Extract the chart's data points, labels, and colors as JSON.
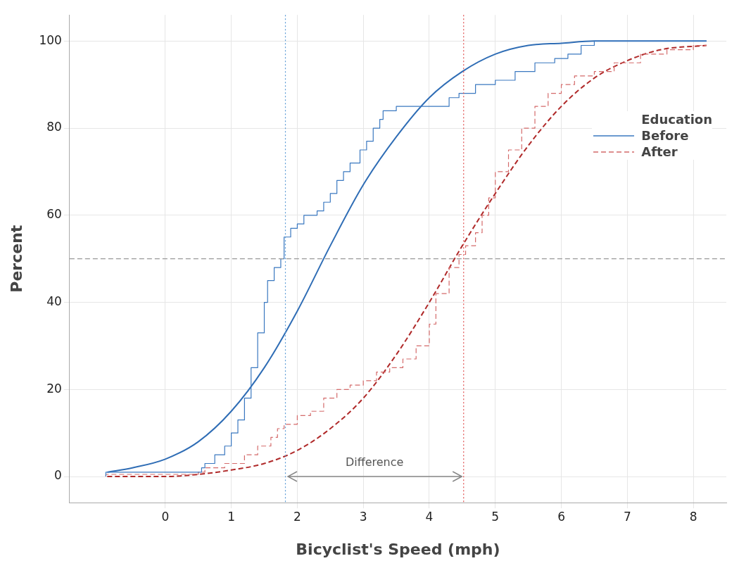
{
  "chart_data": {
    "type": "line",
    "xlabel": "Bicyclist's Speed (mph)",
    "ylabel": "Percent",
    "legend_title": "Education",
    "legend": "top right",
    "grid": true,
    "xlim": [
      -1.45,
      8.5
    ],
    "xticks": [
      0,
      1,
      2,
      3,
      4,
      5,
      6,
      7,
      8
    ],
    "ylim": [
      -6,
      106
    ],
    "yticks": [
      0,
      20,
      40,
      60,
      80,
      100
    ],
    "series": [
      {
        "name": "Before",
        "type": "step",
        "color": "#3a78c0",
        "line_style": "solid",
        "x": [
          -0.9,
          0.55,
          0.6,
          0.75,
          0.9,
          1.0,
          1.1,
          1.2,
          1.3,
          1.4,
          1.5,
          1.55,
          1.65,
          1.75,
          1.8,
          1.9,
          2.0,
          2.1,
          2.3,
          2.4,
          2.5,
          2.6,
          2.7,
          2.8,
          2.95,
          3.05,
          3.15,
          3.25,
          3.3,
          3.5,
          3.8,
          4.3,
          4.45,
          4.7,
          5.0,
          5.3,
          5.6,
          5.9,
          6.1,
          6.3,
          6.5,
          6.6,
          8.2
        ],
        "values": [
          0,
          1,
          2,
          3,
          5,
          7,
          10,
          13,
          18,
          25,
          33,
          40,
          45,
          48,
          50,
          55,
          57,
          58,
          60,
          61,
          63,
          65,
          68,
          70,
          72,
          75,
          77,
          80,
          82,
          84,
          85,
          85,
          87,
          88,
          90,
          91,
          93,
          95,
          96,
          97,
          99,
          100,
          100
        ]
      },
      {
        "color": "#2f6db5",
        "line_style": "solid",
        "x": [
          -0.88,
          -0.5,
          0,
          0.5,
          1,
          1.5,
          2,
          2.5,
          3,
          3.5,
          4,
          4.5,
          5,
          5.5,
          6,
          6.5,
          7,
          7.5,
          8.2
        ],
        "values": [
          1,
          2,
          4,
          8,
          15,
          25,
          38,
          53,
          67,
          78,
          87,
          93,
          97,
          99,
          99.5,
          100,
          100,
          100,
          100
        ]
      },
      {
        "name": "After",
        "type": "step",
        "color": "#d46a6a",
        "line_style": "dashed",
        "x": [
          -0.9,
          0.5,
          0.6,
          0.9,
          1.2,
          1.4,
          1.6,
          1.7,
          1.8,
          2.0,
          2.2,
          2.4,
          2.6,
          2.8,
          3.0,
          3.2,
          3.4,
          3.6,
          3.8,
          4.0,
          4.1,
          4.3,
          4.45,
          4.55,
          4.7,
          4.8,
          4.9,
          5.0,
          5.2,
          5.4,
          5.6,
          5.8,
          6.0,
          6.2,
          6.5,
          6.8,
          7.2,
          7.6,
          8.0,
          8.2
        ],
        "values": [
          0,
          0.5,
          1,
          2,
          3,
          5,
          7,
          9,
          11,
          12,
          14,
          15,
          18,
          20,
          21,
          22,
          24,
          25,
          27,
          30,
          35,
          42,
          48,
          51,
          53,
          56,
          60,
          64,
          70,
          75,
          80,
          85,
          88,
          90,
          92,
          93,
          95,
          97,
          98,
          99
        ]
      },
      {
        "color": "#b02a2a",
        "line_style": "dashed",
        "x": [
          -0.88,
          -0.5,
          0,
          0.5,
          1,
          1.5,
          2,
          2.5,
          3,
          3.5,
          4,
          4.5,
          5,
          5.5,
          6,
          6.5,
          7,
          7.5,
          8.2
        ],
        "values": [
          0,
          0,
          0,
          0.5,
          1.5,
          3,
          6,
          11,
          18,
          28,
          40,
          53,
          65,
          76,
          85,
          91.5,
          95.5,
          98,
          99
        ]
      }
    ],
    "ref_lines": [
      {
        "axis": "x",
        "value": 1.82,
        "color": "#5b9bd5",
        "line_style": "dotted"
      },
      {
        "axis": "x",
        "value": 4.52,
        "color": "#e05050",
        "line_style": "dotted"
      },
      {
        "axis": "y",
        "value": 50,
        "color": "#999999",
        "line_style": "dashed"
      }
    ],
    "annotations": [
      "Difference"
    ]
  }
}
